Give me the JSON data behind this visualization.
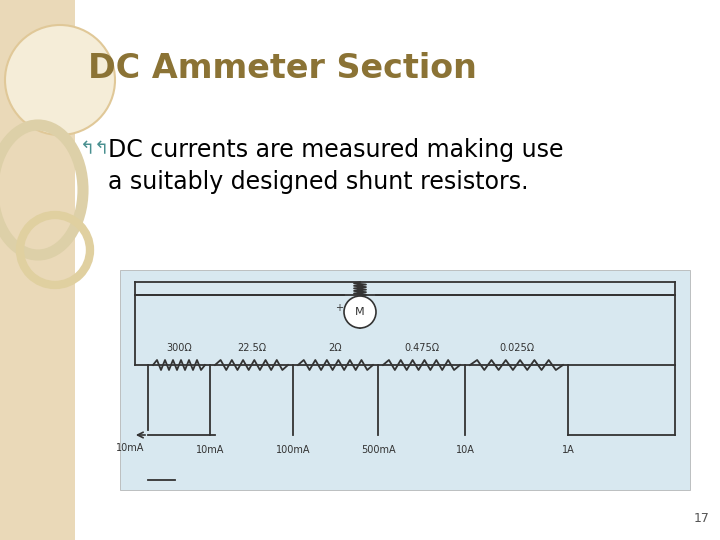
{
  "title": "DC Ammeter Section",
  "title_color": "#8B7335",
  "title_fontsize": 24,
  "bullet_symbol": "↰↰",
  "bullet_color": "#4A9090",
  "bullet_text_line1": "DC currents are measured making use",
  "bullet_text_line2": "a suitably designed shunt resistors.",
  "bullet_fontsize": 17,
  "text_color": "#000000",
  "background_color": "#FFFFFF",
  "left_panel_color": "#EAD9B8",
  "page_number": "17",
  "page_number_color": "#555555",
  "page_number_fontsize": 9,
  "res_labels": [
    "300Ω",
    "22.5Ω",
    "2Ω",
    "0.475Ω",
    "0.025Ω"
  ],
  "tap_labels": [
    "10mA",
    "100mA",
    "500mA",
    "10A",
    "1A"
  ],
  "wire_color": "#333333",
  "circuit_bg": "#D8E8F0"
}
